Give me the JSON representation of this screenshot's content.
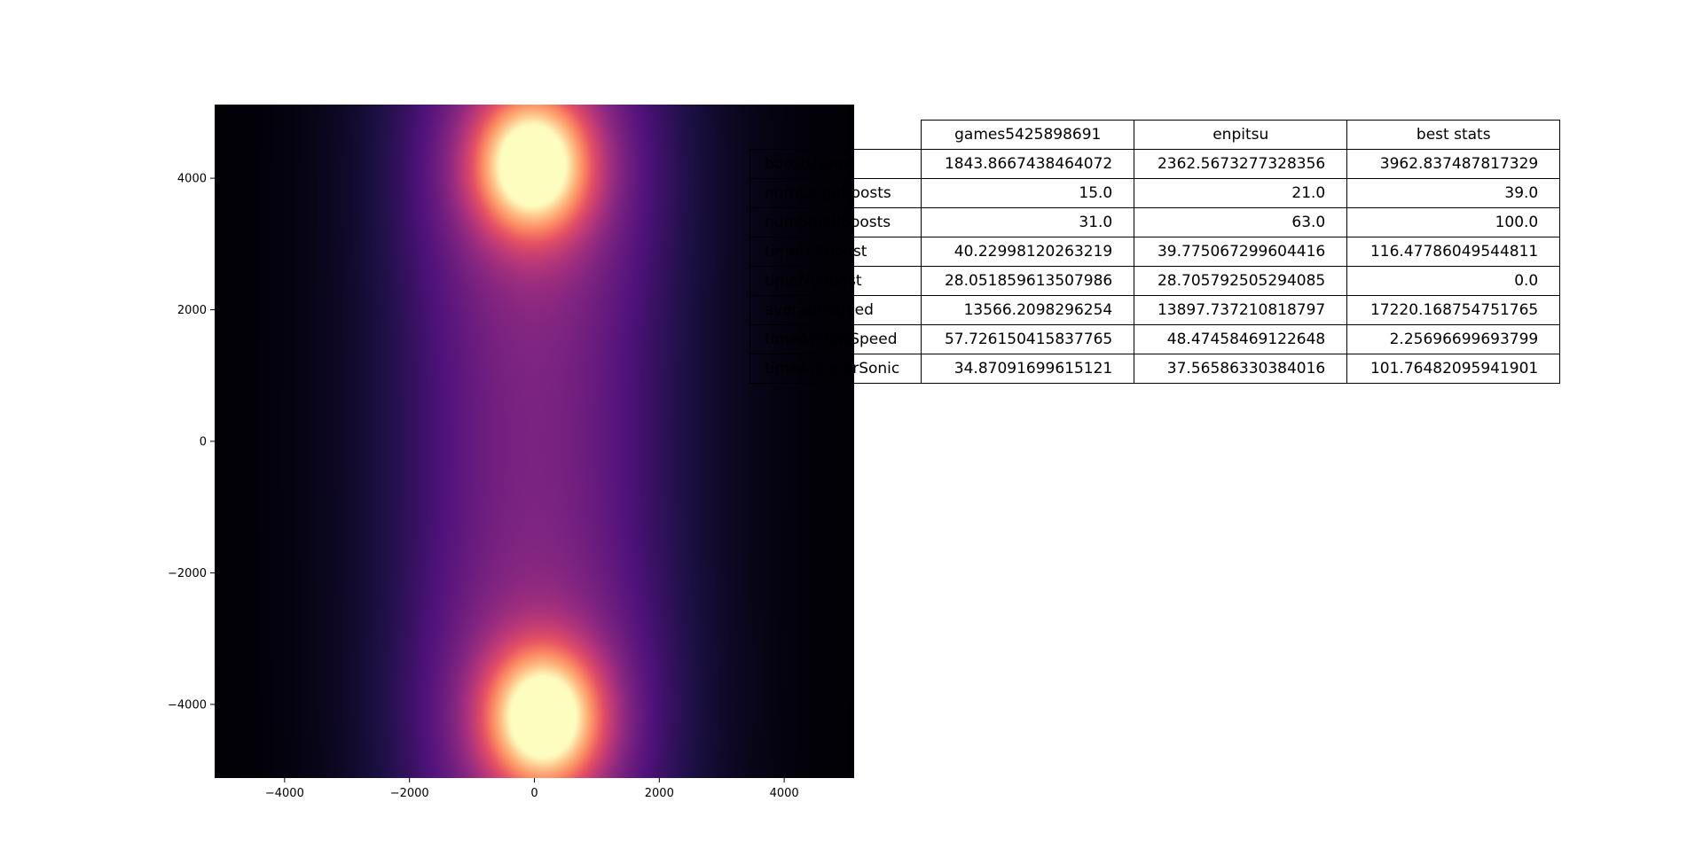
{
  "chart_data": [
    {
      "type": "heatmap",
      "title": "",
      "xlabel": "",
      "ylabel": "",
      "xlim": [
        -5120,
        5120
      ],
      "ylim": [
        -5120,
        5120
      ],
      "x_ticks": [
        -4000,
        -2000,
        0,
        2000,
        4000
      ],
      "y_ticks": [
        4000,
        2000,
        0,
        -2000,
        -4000
      ],
      "x_tick_labels": [
        "−4000",
        "−2000",
        "0",
        "2000",
        "4000"
      ],
      "y_tick_labels": [
        "4000",
        "2000",
        "0",
        "−2000",
        "−4000"
      ],
      "colormap": "magma",
      "hotspots": [
        {
          "x": -30,
          "y": 4200,
          "intensity": 1.0
        },
        {
          "x": 150,
          "y": -4200,
          "intensity": 1.0
        }
      ],
      "grid": false
    },
    {
      "type": "table",
      "columns": [
        "games5425898691",
        "enpitsu",
        "best stats"
      ],
      "rows": [
        {
          "label": "boostUsage",
          "values": [
            "1843.8667438464072",
            "2362.5673277328356",
            "3962.837487817329"
          ]
        },
        {
          "label": "numLargeBoosts",
          "values": [
            "15.0",
            "21.0",
            "39.0"
          ]
        },
        {
          "label": "numSmallBoosts",
          "values": [
            "31.0",
            "63.0",
            "100.0"
          ]
        },
        {
          "label": "timeFullBoost",
          "values": [
            "40.22998120263219",
            "39.775067299604416",
            "116.47786049544811"
          ]
        },
        {
          "label": "timeNoBoost",
          "values": [
            "28.051859613507986",
            "28.705792505294085",
            "0.0"
          ]
        },
        {
          "label": "averageSpeed",
          "values": [
            "13566.2098296254",
            "13897.737210818797",
            "17220.168754751765"
          ]
        },
        {
          "label": "timeAtSlowSpeed",
          "values": [
            "57.726150415837765",
            "48.47458469122648",
            "2.25696699693799"
          ]
        },
        {
          "label": "timeAtSuperSonic",
          "values": [
            "34.87091699615121",
            "37.56586330384016",
            "101.76482095941901"
          ]
        }
      ]
    }
  ]
}
